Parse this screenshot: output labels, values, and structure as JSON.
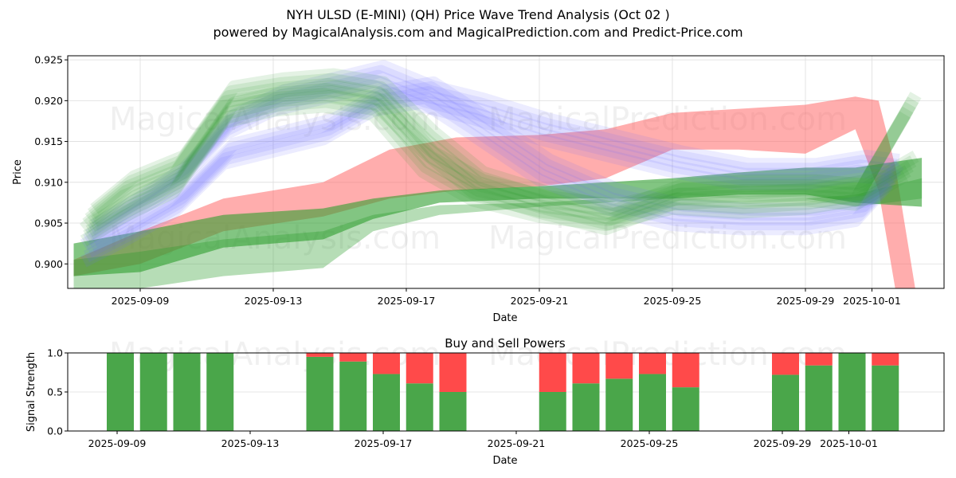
{
  "header": {
    "title": "NYH ULSD (E-MINI) (QH) Price Wave Trend Analysis (Oct 02 )",
    "subtitle": "powered by MagicalAnalysis.com and MagicalPrediction.com and Predict-Price.com"
  },
  "watermarks": [
    "MagicalAnalysis.com",
    "MagicalPrediction.com"
  ],
  "chart_data": [
    {
      "type": "area",
      "title": "NYH ULSD (E-MINI) (QH) Price Wave Trend Analysis (Oct 02 )",
      "xlabel": "Date",
      "ylabel": "Price",
      "xlim": [
        "2025-09-06.8",
        "2025-10-03.2"
      ],
      "ylim": [
        0.897,
        0.9255
      ],
      "grid": true,
      "x_ticks": [
        "2025-09-09",
        "2025-09-13",
        "2025-09-17",
        "2025-09-21",
        "2025-09-25",
        "2025-09-29",
        "2025-10-01"
      ],
      "y_ticks": [
        "0.900",
        "0.905",
        "0.910",
        "0.915",
        "0.920",
        "0.925"
      ],
      "colors": {
        "blue": "#6a6aff",
        "green": "#2e9e2e",
        "red": "#ff6a6a"
      },
      "series": [
        {
          "name": "blue-wave-upper",
          "color": "blue",
          "width": 0.0022,
          "x": [
            7.3,
            8.5,
            10,
            11.5,
            13,
            14.5,
            16,
            17.5,
            19,
            21,
            23,
            25,
            27,
            29,
            30.5,
            31.5
          ],
          "y": [
            0.9035,
            0.9065,
            0.9105,
            0.917,
            0.92,
            0.9215,
            0.923,
            0.9205,
            0.919,
            0.9165,
            0.9145,
            0.9125,
            0.911,
            0.911,
            0.912,
            0.9115
          ]
        },
        {
          "name": "blue-wave-lower",
          "color": "blue",
          "width": 0.0022,
          "x": [
            7.3,
            8.5,
            10,
            11.5,
            13,
            14.5,
            16,
            17.5,
            19,
            21,
            23,
            25,
            27,
            29,
            30.5,
            31.5
          ],
          "y": [
            0.9015,
            0.904,
            0.9075,
            0.9135,
            0.915,
            0.9165,
            0.92,
            0.921,
            0.917,
            0.9115,
            0.908,
            0.906,
            0.9055,
            0.9055,
            0.9065,
            0.911
          ]
        },
        {
          "name": "green-wave-upper",
          "color": "green",
          "width": 0.0022,
          "x": [
            7.3,
            8.5,
            10,
            11.5,
            13,
            14.5,
            16,
            17.5,
            19,
            21,
            23,
            25,
            27,
            29,
            30.5,
            32
          ],
          "y": [
            0.9055,
            0.9095,
            0.912,
            0.9205,
            0.9215,
            0.922,
            0.921,
            0.915,
            0.91,
            0.9075,
            0.9055,
            0.9085,
            0.909,
            0.909,
            0.9085,
            0.912
          ]
        },
        {
          "name": "green-wave-lower",
          "color": "green",
          "width": 0.0022,
          "x": [
            7.3,
            8.5,
            10,
            11.5,
            13,
            14.5,
            16,
            17.5,
            19,
            21,
            23,
            25,
            27,
            29,
            30.5,
            32
          ],
          "y": [
            0.904,
            0.907,
            0.91,
            0.9185,
            0.92,
            0.9205,
            0.9195,
            0.9125,
            0.909,
            0.907,
            0.906,
            0.908,
            0.9075,
            0.908,
            0.909,
            0.9195
          ]
        },
        {
          "name": "red-trend-band",
          "color": "red",
          "x": [
            7,
            9,
            11.5,
            14.5,
            16.5,
            18.5,
            21,
            23,
            25,
            27,
            29,
            30.5,
            31.2,
            31.7,
            32.3
          ],
          "upper": [
            0.9005,
            0.904,
            0.908,
            0.91,
            0.914,
            0.9155,
            0.9158,
            0.9165,
            0.9185,
            0.919,
            0.9195,
            0.9205,
            0.92,
            0.912,
            0.897
          ],
          "lower": [
            0.8985,
            0.9,
            0.904,
            0.9058,
            0.908,
            0.909,
            0.9095,
            0.9105,
            0.914,
            0.914,
            0.9135,
            0.9165,
            0.909,
            0.897,
            0.895
          ]
        },
        {
          "name": "green-trend-band-upper",
          "color": "green",
          "x": [
            7,
            9,
            11.5,
            14.5,
            16,
            18,
            21,
            23,
            25,
            27,
            29,
            30.5,
            32.5
          ],
          "upper": [
            0.9025,
            0.904,
            0.906,
            0.9068,
            0.908,
            0.909,
            0.9095,
            0.91,
            0.9105,
            0.9112,
            0.9118,
            0.9118,
            0.913
          ],
          "lower": [
            0.8985,
            0.899,
            0.902,
            0.903,
            0.9055,
            0.9075,
            0.908,
            0.908,
            0.908,
            0.9085,
            0.9085,
            0.9075,
            0.907
          ]
        },
        {
          "name": "green-trend-band-lower",
          "color": "green",
          "x": [
            7,
            9,
            11.5,
            14.5,
            16,
            18,
            21,
            23,
            25,
            27,
            29,
            30.5,
            32.5
          ],
          "upper": [
            0.9005,
            0.9015,
            0.903,
            0.904,
            0.906,
            0.9072,
            0.9075,
            0.908,
            0.908,
            0.908,
            0.908,
            0.9085,
            0.9105
          ],
          "lower": [
            0.8965,
            0.897,
            0.8985,
            0.8995,
            0.904,
            0.906,
            0.907,
            0.9075,
            0.908,
            0.908,
            0.908,
            0.907,
            0.908
          ]
        }
      ]
    },
    {
      "type": "bar",
      "title": "Buy and Sell Powers",
      "xlabel": "Date",
      "ylabel": "Signal Strength",
      "ylim": [
        0.0,
        1.0
      ],
      "y_ticks": [
        "0.0",
        "0.5",
        "1.0"
      ],
      "x_ticks": [
        "2025-09-09",
        "2025-09-13",
        "2025-09-17",
        "2025-09-21",
        "2025-09-25",
        "2025-09-29",
        "2025-10-01"
      ],
      "colors": {
        "buy": "#4aa64a",
        "sell": "#ff4a4a"
      },
      "categories": [
        "2025-09-09",
        "2025-09-10",
        "2025-09-11",
        "2025-09-12",
        "2025-09-15",
        "2025-09-16",
        "2025-09-17",
        "2025-09-18",
        "2025-09-19",
        "2025-09-22",
        "2025-09-23",
        "2025-09-24",
        "2025-09-25",
        "2025-09-26",
        "2025-09-29",
        "2025-09-30",
        "2025-10-01",
        "2025-10-02"
      ],
      "series": [
        {
          "name": "Buy",
          "values": [
            1.0,
            1.0,
            1.0,
            1.0,
            0.95,
            0.89,
            0.73,
            0.61,
            0.5,
            0.5,
            0.61,
            0.67,
            0.73,
            0.56,
            0.72,
            0.84,
            1.0,
            0.84
          ]
        },
        {
          "name": "Sell",
          "values": [
            0.0,
            0.0,
            0.0,
            0.0,
            0.05,
            0.11,
            0.27,
            0.39,
            0.5,
            0.5,
            0.39,
            0.33,
            0.27,
            0.44,
            0.28,
            0.16,
            0.0,
            0.16
          ]
        }
      ]
    }
  ]
}
